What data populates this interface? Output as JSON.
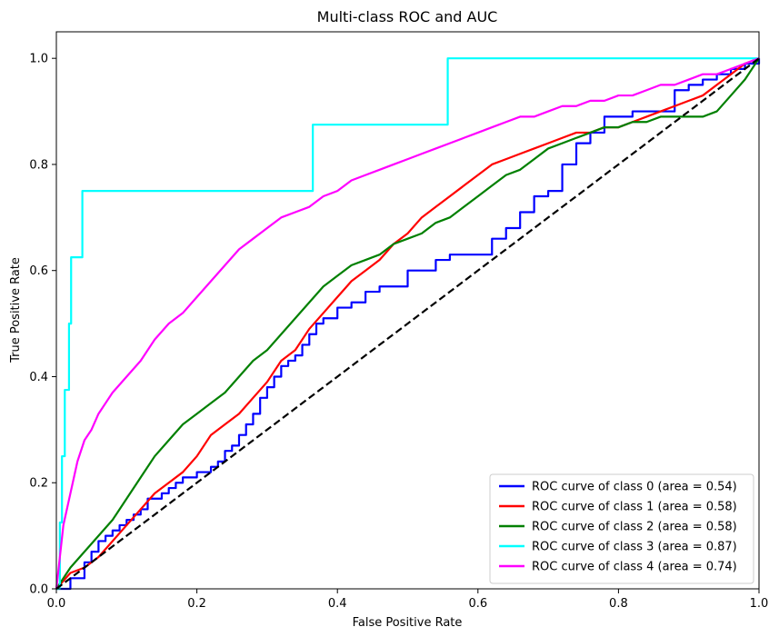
{
  "chart_data": {
    "type": "line",
    "title": "Multi-class ROC and AUC",
    "xlabel": "False Positive Rate",
    "ylabel": "True Positive Rate",
    "xlim": [
      0,
      1
    ],
    "ylim": [
      0,
      1.05
    ],
    "xticks": [
      0.0,
      0.2,
      0.4,
      0.6,
      0.8,
      1.0
    ],
    "xtick_labels": [
      "0.0",
      "0.2",
      "0.4",
      "0.6",
      "0.8",
      "1.0"
    ],
    "yticks": [
      0.0,
      0.2,
      0.4,
      0.6,
      0.8,
      1.0
    ],
    "ytick_labels": [
      "0.0",
      "0.2",
      "0.4",
      "0.6",
      "0.8",
      "1.0"
    ],
    "grid": false,
    "legend_position": "bottom-right",
    "series": [
      {
        "name": "ROC curve of class 0 (area = 0.54)",
        "color": "#0000ff",
        "step": true,
        "x": [
          0,
          0.02,
          0.04,
          0.05,
          0.06,
          0.07,
          0.08,
          0.09,
          0.1,
          0.11,
          0.12,
          0.13,
          0.14,
          0.15,
          0.16,
          0.17,
          0.18,
          0.19,
          0.2,
          0.21,
          0.22,
          0.23,
          0.24,
          0.25,
          0.26,
          0.27,
          0.28,
          0.29,
          0.3,
          0.31,
          0.32,
          0.33,
          0.34,
          0.35,
          0.36,
          0.37,
          0.38,
          0.4,
          0.42,
          0.44,
          0.46,
          0.48,
          0.5,
          0.52,
          0.54,
          0.56,
          0.58,
          0.6,
          0.62,
          0.64,
          0.66,
          0.68,
          0.7,
          0.72,
          0.74,
          0.76,
          0.78,
          0.8,
          0.82,
          0.84,
          0.86,
          0.88,
          0.9,
          0.92,
          0.94,
          0.96,
          0.98,
          1.0
        ],
        "y": [
          0,
          0.02,
          0.05,
          0.07,
          0.09,
          0.1,
          0.11,
          0.12,
          0.13,
          0.14,
          0.15,
          0.17,
          0.17,
          0.18,
          0.19,
          0.2,
          0.21,
          0.21,
          0.22,
          0.22,
          0.23,
          0.24,
          0.26,
          0.27,
          0.29,
          0.31,
          0.33,
          0.36,
          0.38,
          0.4,
          0.42,
          0.43,
          0.44,
          0.46,
          0.48,
          0.5,
          0.51,
          0.53,
          0.54,
          0.56,
          0.57,
          0.57,
          0.6,
          0.6,
          0.62,
          0.63,
          0.63,
          0.63,
          0.66,
          0.68,
          0.71,
          0.74,
          0.75,
          0.8,
          0.84,
          0.86,
          0.89,
          0.89,
          0.9,
          0.9,
          0.9,
          0.94,
          0.95,
          0.96,
          0.97,
          0.98,
          0.99,
          1.0
        ]
      },
      {
        "name": "ROC curve of class 1 (area = 0.58)",
        "color": "#ff0000",
        "step": false,
        "x": [
          0,
          0.02,
          0.04,
          0.06,
          0.08,
          0.1,
          0.12,
          0.14,
          0.16,
          0.18,
          0.2,
          0.22,
          0.24,
          0.26,
          0.28,
          0.3,
          0.32,
          0.34,
          0.36,
          0.38,
          0.4,
          0.42,
          0.44,
          0.46,
          0.48,
          0.5,
          0.52,
          0.54,
          0.56,
          0.58,
          0.6,
          0.62,
          0.64,
          0.66,
          0.68,
          0.7,
          0.72,
          0.74,
          0.76,
          0.78,
          0.8,
          0.82,
          0.84,
          0.86,
          0.88,
          0.9,
          0.92,
          0.94,
          0.96,
          0.98,
          1.0
        ],
        "y": [
          0,
          0.03,
          0.04,
          0.06,
          0.09,
          0.12,
          0.15,
          0.18,
          0.2,
          0.22,
          0.25,
          0.29,
          0.31,
          0.33,
          0.36,
          0.39,
          0.43,
          0.45,
          0.49,
          0.52,
          0.55,
          0.58,
          0.6,
          0.62,
          0.65,
          0.67,
          0.7,
          0.72,
          0.74,
          0.76,
          0.78,
          0.8,
          0.81,
          0.82,
          0.83,
          0.84,
          0.85,
          0.86,
          0.86,
          0.87,
          0.87,
          0.88,
          0.89,
          0.9,
          0.91,
          0.92,
          0.93,
          0.95,
          0.97,
          0.99,
          1.0
        ]
      },
      {
        "name": "ROC curve of class 2 (area = 0.58)",
        "color": "#008000",
        "step": false,
        "x": [
          0,
          0.02,
          0.04,
          0.06,
          0.08,
          0.1,
          0.12,
          0.14,
          0.16,
          0.18,
          0.2,
          0.22,
          0.24,
          0.26,
          0.28,
          0.3,
          0.32,
          0.34,
          0.36,
          0.38,
          0.4,
          0.42,
          0.44,
          0.46,
          0.48,
          0.5,
          0.52,
          0.54,
          0.56,
          0.58,
          0.6,
          0.62,
          0.64,
          0.66,
          0.68,
          0.7,
          0.72,
          0.74,
          0.76,
          0.78,
          0.8,
          0.82,
          0.84,
          0.86,
          0.88,
          0.9,
          0.92,
          0.94,
          0.96,
          0.98,
          1.0
        ],
        "y": [
          0,
          0.04,
          0.07,
          0.1,
          0.13,
          0.17,
          0.21,
          0.25,
          0.28,
          0.31,
          0.33,
          0.35,
          0.37,
          0.4,
          0.43,
          0.45,
          0.48,
          0.51,
          0.54,
          0.57,
          0.59,
          0.61,
          0.62,
          0.63,
          0.65,
          0.66,
          0.67,
          0.69,
          0.7,
          0.72,
          0.74,
          0.76,
          0.78,
          0.79,
          0.81,
          0.83,
          0.84,
          0.85,
          0.86,
          0.87,
          0.87,
          0.88,
          0.88,
          0.89,
          0.89,
          0.89,
          0.89,
          0.9,
          0.93,
          0.96,
          1.0
        ]
      },
      {
        "name": "ROC curve of class 3 (area = 0.87)",
        "color": "#00ffff",
        "step": true,
        "x": [
          0,
          0.005,
          0.008,
          0.012,
          0.012,
          0.018,
          0.018,
          0.021,
          0.021,
          0.037,
          0.037,
          0.365,
          0.365,
          0.557,
          0.557,
          1.0
        ],
        "y": [
          0,
          0.125,
          0.25,
          0.25,
          0.375,
          0.375,
          0.5,
          0.5,
          0.625,
          0.625,
          0.75,
          0.75,
          0.875,
          0.875,
          1.0,
          1.0
        ]
      },
      {
        "name": "ROC curve of class 4 (area = 0.74)",
        "color": "#ff00ff",
        "step": false,
        "x": [
          0,
          0.01,
          0.02,
          0.03,
          0.04,
          0.05,
          0.06,
          0.07,
          0.08,
          0.1,
          0.12,
          0.14,
          0.16,
          0.18,
          0.2,
          0.22,
          0.24,
          0.26,
          0.28,
          0.3,
          0.32,
          0.34,
          0.36,
          0.38,
          0.4,
          0.42,
          0.44,
          0.46,
          0.48,
          0.5,
          0.52,
          0.54,
          0.56,
          0.58,
          0.6,
          0.62,
          0.64,
          0.66,
          0.68,
          0.7,
          0.72,
          0.74,
          0.76,
          0.78,
          0.8,
          0.82,
          0.84,
          0.86,
          0.88,
          0.9,
          0.92,
          0.94,
          0.96,
          0.98,
          1.0
        ],
        "y": [
          0,
          0.12,
          0.18,
          0.24,
          0.28,
          0.3,
          0.33,
          0.35,
          0.37,
          0.4,
          0.43,
          0.47,
          0.5,
          0.52,
          0.55,
          0.58,
          0.61,
          0.64,
          0.66,
          0.68,
          0.7,
          0.71,
          0.72,
          0.74,
          0.75,
          0.77,
          0.78,
          0.79,
          0.8,
          0.81,
          0.82,
          0.83,
          0.84,
          0.85,
          0.86,
          0.87,
          0.88,
          0.89,
          0.89,
          0.9,
          0.91,
          0.91,
          0.92,
          0.92,
          0.93,
          0.93,
          0.94,
          0.95,
          0.95,
          0.96,
          0.97,
          0.97,
          0.98,
          0.99,
          1.0
        ]
      },
      {
        "name": "",
        "color": "#000000",
        "dashed": true,
        "step": false,
        "x": [
          0,
          1
        ],
        "y": [
          0,
          1
        ]
      }
    ]
  }
}
